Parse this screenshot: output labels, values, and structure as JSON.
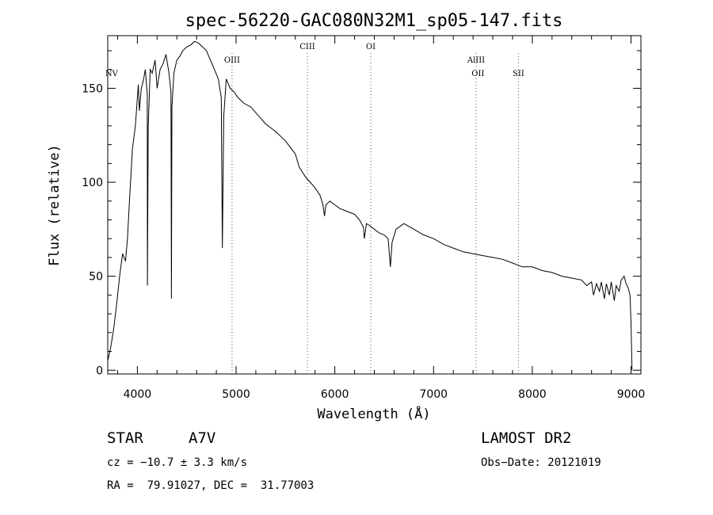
{
  "chart_data": {
    "type": "line",
    "title": "spec-56220-GAC080N32M1_sp05-147.fits",
    "xlabel": "Wavelength (Å)",
    "ylabel": "Flux (relative)",
    "xlim": [
      3700,
      9100
    ],
    "ylim": [
      -2,
      178
    ],
    "xticks": [
      4000,
      5000,
      6000,
      7000,
      8000,
      9000
    ],
    "yticks": [
      0,
      50,
      100,
      150
    ],
    "grid": false,
    "series": [
      {
        "x": [
          3700,
          3730,
          3760,
          3790,
          3820,
          3850,
          3880,
          3900,
          3920,
          3950,
          3980,
          4000,
          4010,
          4020,
          4040,
          4060,
          4080,
          4100,
          4102,
          4110,
          4130,
          4150,
          4180,
          4200,
          4230,
          4260,
          4290,
          4320,
          4340,
          4345,
          4350,
          4370,
          4400,
          4430,
          4460,
          4500,
          4540,
          4580,
          4620,
          4660,
          4700,
          4740,
          4780,
          4820,
          4850,
          4861,
          4875,
          4900,
          4940,
          4980,
          5020,
          5080,
          5150,
          5200,
          5250,
          5300,
          5400,
          5500,
          5600,
          5640,
          5700,
          5750,
          5800,
          5850,
          5880,
          5895,
          5910,
          5950,
          6000,
          6050,
          6100,
          6150,
          6200,
          6250,
          6290,
          6300,
          6320,
          6350,
          6400,
          6450,
          6500,
          6540,
          6563,
          6580,
          6620,
          6700,
          6800,
          6900,
          7000,
          7100,
          7200,
          7300,
          7400,
          7500,
          7600,
          7700,
          7800,
          7900,
          8000,
          8100,
          8200,
          8300,
          8400,
          8500,
          8550,
          8600,
          8620,
          8650,
          8680,
          8700,
          8730,
          8750,
          8780,
          8800,
          8830,
          8850,
          8880,
          8900,
          8930,
          8950,
          8970,
          8990,
          9000,
          9010
        ],
        "y": [
          5,
          12,
          22,
          35,
          50,
          62,
          58,
          70,
          90,
          118,
          130,
          145,
          152,
          138,
          150,
          154,
          160,
          147,
          45,
          130,
          160,
          158,
          165,
          150,
          160,
          163,
          168,
          158,
          148,
          38,
          140,
          158,
          165,
          167,
          170,
          172,
          173,
          175,
          174,
          172,
          170,
          165,
          160,
          155,
          145,
          65,
          135,
          155,
          150,
          148,
          145,
          142,
          140,
          137,
          134,
          131,
          127,
          122,
          115,
          108,
          103,
          100,
          97,
          93,
          88,
          82,
          88,
          90,
          88,
          86,
          85,
          84,
          83,
          80,
          76,
          70,
          78,
          77,
          75,
          73,
          72,
          70,
          55,
          68,
          75,
          78,
          75,
          72,
          70,
          67,
          65,
          63,
          62,
          61,
          60,
          59,
          57,
          55,
          55,
          53,
          52,
          50,
          49,
          48,
          45,
          47,
          40,
          46,
          42,
          47,
          38,
          46,
          40,
          47,
          37,
          45,
          42,
          48,
          50,
          46,
          44,
          40,
          25,
          0
        ]
      }
    ],
    "annotations": [
      {
        "label": "NV",
        "x": 3739
      },
      {
        "label": "OIII",
        "x": 4959
      },
      {
        "label": "CIII",
        "x": 5722
      },
      {
        "label": "OI",
        "x": 6364
      },
      {
        "label": "AlIII",
        "x": 7431
      },
      {
        "label": "OII",
        "x": 7450
      },
      {
        "label": "SII",
        "x": 7860
      }
    ],
    "annotation_lines": [
      4959,
      5722,
      6364,
      7431,
      7860
    ]
  },
  "info": {
    "object_class": "STAR",
    "subclass": "A7V",
    "survey": "LAMOST DR2",
    "cz": "cz = −10.7 ± 3.3 km/s",
    "obs_date": "Obs−Date: 20121019",
    "coords": "RA =  79.91027, DEC =  31.77003"
  }
}
